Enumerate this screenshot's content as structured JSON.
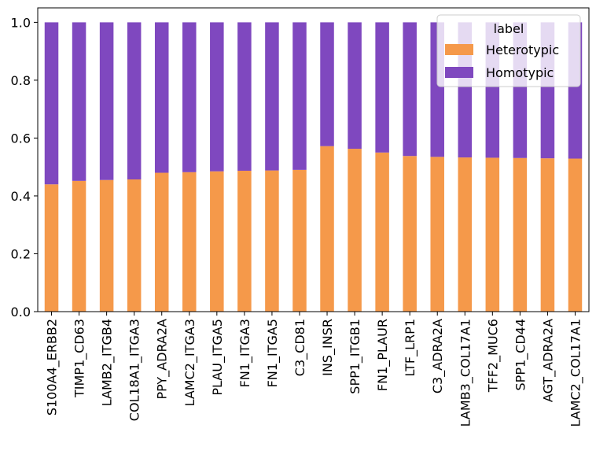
{
  "chart_data": {
    "type": "bar",
    "stacked": true,
    "categories": [
      "S100A4_ERBB2",
      "TIMP1_CD63",
      "LAMB2_ITGB4",
      "COL18A1_ITGA3",
      "PPY_ADRA2A",
      "LAMC2_ITGA3",
      "PLAU_ITGA5",
      "FN1_ITGA3",
      "FN1_ITGA5",
      "C3_CD81",
      "INS_INSR",
      "SPP1_ITGB1",
      "FN1_PLAUR",
      "LTF_LRP1",
      "C3_ADRA2A",
      "LAMB3_COL17A1",
      "TFF2_MUC6",
      "SPP1_CD44",
      "AGT_ADRA2A",
      "LAMC2_COL17A1"
    ],
    "series": [
      {
        "name": "Heterotypic",
        "color": "#f5994a",
        "values": [
          0.44,
          0.452,
          0.455,
          0.457,
          0.48,
          0.482,
          0.485,
          0.487,
          0.488,
          0.49,
          0.572,
          0.563,
          0.55,
          0.538,
          0.535,
          0.533,
          0.532,
          0.531,
          0.53,
          0.529
        ]
      },
      {
        "name": "Homotypic",
        "color": "#7f48bf",
        "values": [
          0.56,
          0.548,
          0.545,
          0.543,
          0.52,
          0.518,
          0.515,
          0.513,
          0.512,
          0.51,
          0.428,
          0.437,
          0.45,
          0.462,
          0.465,
          0.467,
          0.468,
          0.469,
          0.47,
          0.471
        ]
      }
    ],
    "ylim": [
      0,
      1.05
    ],
    "yticks": [
      "0.0",
      "0.2",
      "0.4",
      "0.6",
      "0.8",
      "1.0"
    ],
    "legend": {
      "title": "label",
      "placement": "top-right"
    },
    "grid": false
  }
}
